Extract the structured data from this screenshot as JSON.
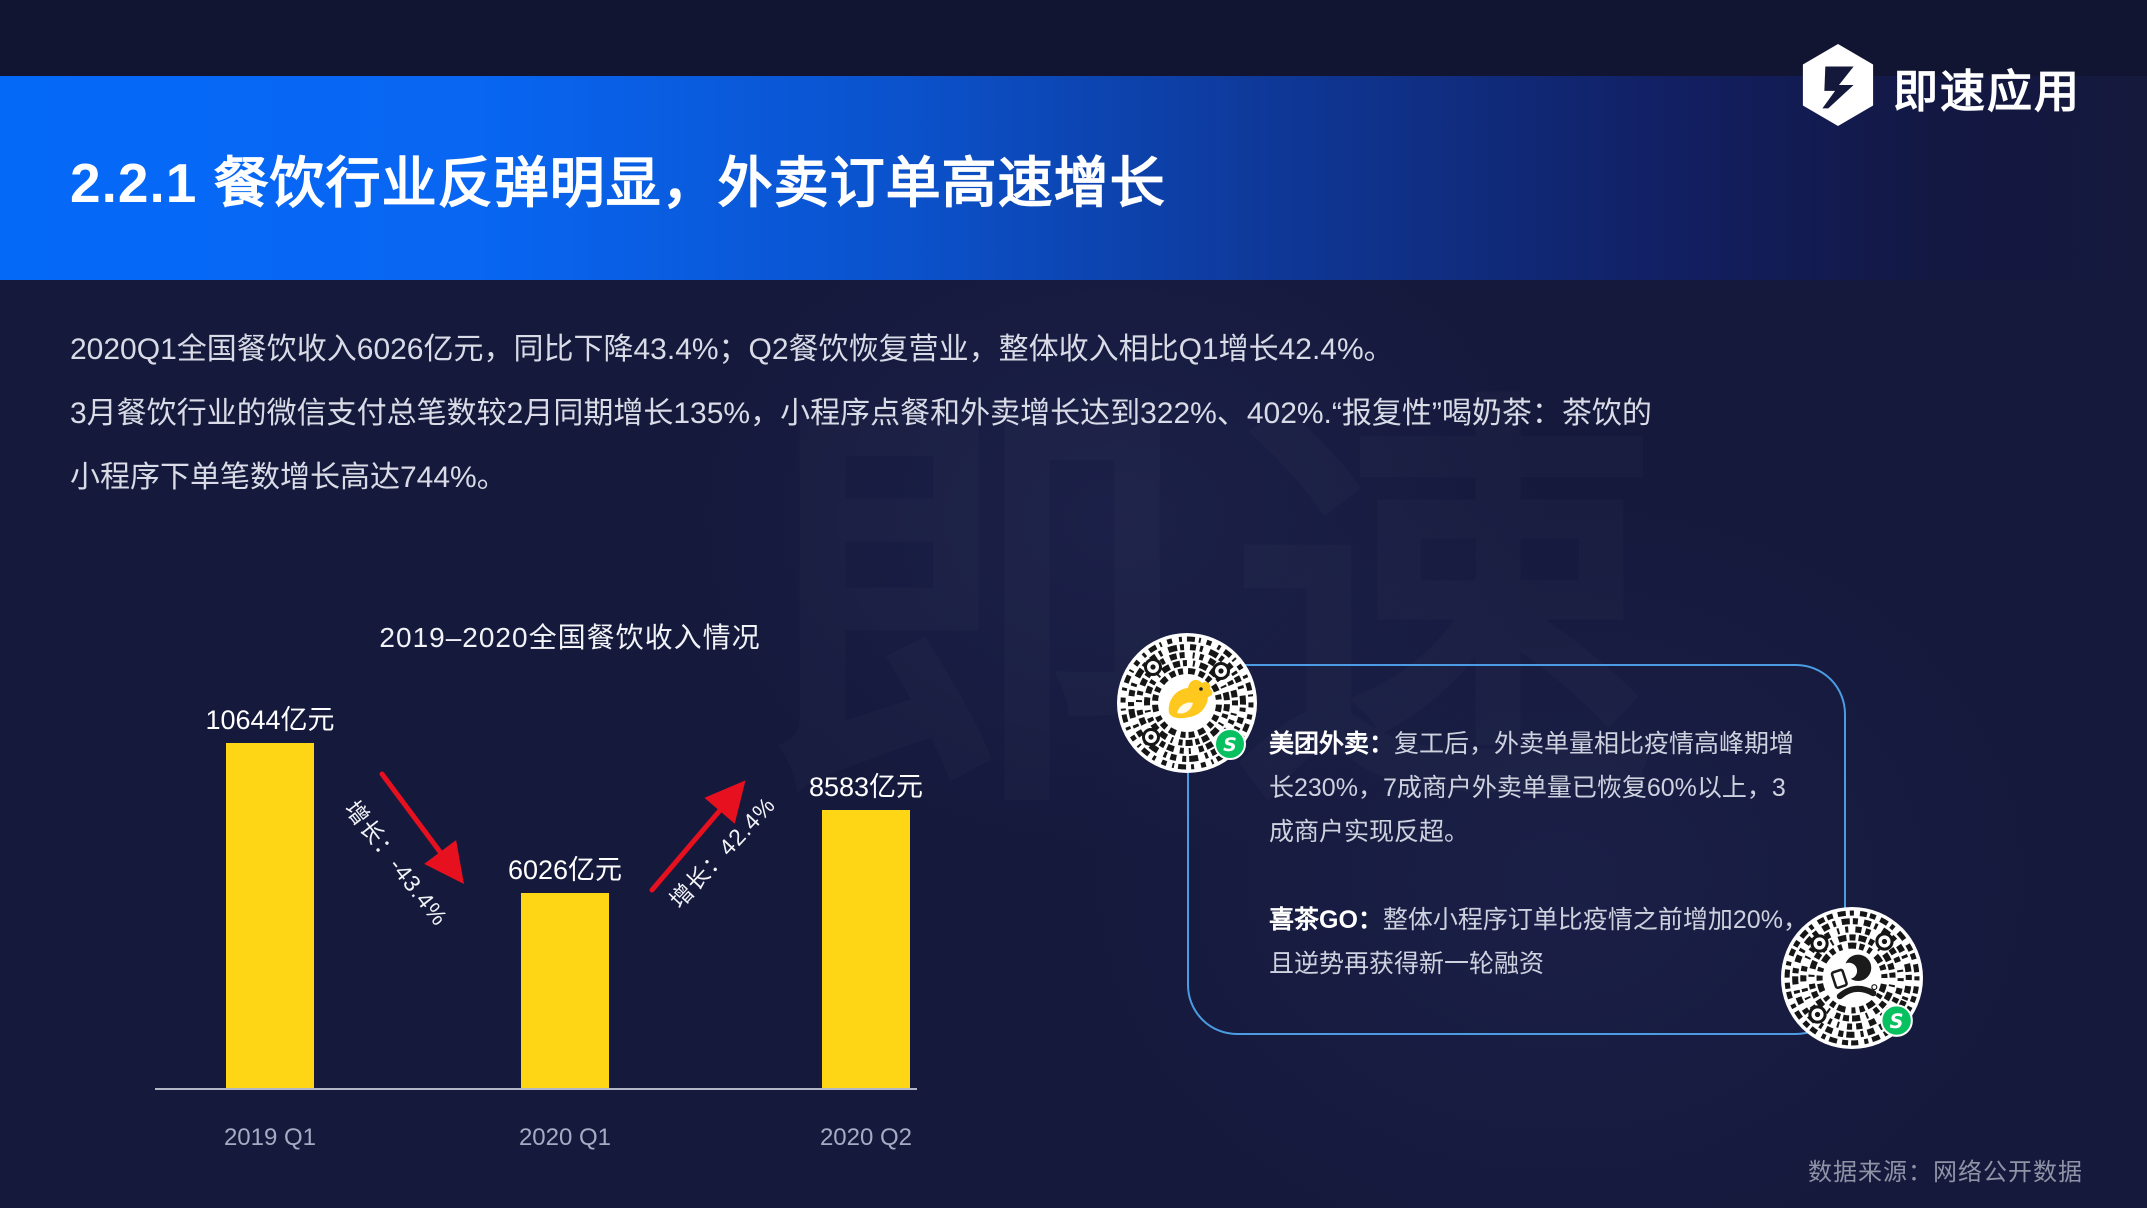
{
  "logo": {
    "text": "即速应用"
  },
  "header": {
    "title": "2.2.1 餐饮行业反弹明显，外卖订单高速增长"
  },
  "intro": {
    "lines": [
      "2020Q1全国餐饮收入6026亿元，同比下降43.4%；Q2餐饮恢复营业，整体收入相比Q1增长42.4%。",
      "3月餐饮行业的微信支付总笔数较2月同期增长135%，小程序点餐和外卖增长达到322%、402%.“报复性”喝奶茶：茶饮的",
      "小程序下单笔数增长高达744%。"
    ]
  },
  "chart_data": {
    "type": "bar",
    "title": "2019–2020全国餐饮收入情况",
    "categories": [
      "2019 Q1",
      "2020 Q1",
      "2020 Q2"
    ],
    "values": [
      10644,
      6026,
      8583
    ],
    "unit": "亿元",
    "value_labels": [
      "10644亿元",
      "6026亿元",
      "8583亿元"
    ],
    "ylim": [
      0,
      10644
    ],
    "grid": false,
    "legend": "none",
    "bar_color": "#FFD615",
    "annotations": [
      {
        "text": "增长：-43.4%",
        "between": [
          "2019 Q1",
          "2020 Q1"
        ],
        "direction": "down"
      },
      {
        "text": "增长：42.4%",
        "between": [
          "2020 Q1",
          "2020 Q2"
        ],
        "direction": "up"
      }
    ]
  },
  "panel": {
    "items": [
      {
        "label": "美团外卖：",
        "text": "复工后，外卖单量相比疫情高峰期增长230%，7成商户外卖单量已恢复60%以上，3成商户实现反超。",
        "qr": "meituan-mini-program-qr"
      },
      {
        "label": "喜茶GO：",
        "text": "整体小程序订单比疫情之前增加20%，且逆势再获得新一轮融资",
        "qr": "heytea-mini-program-qr"
      }
    ]
  },
  "footer": {
    "source": "数据来源：网络公开数据"
  },
  "colors": {
    "background": "#15193C",
    "banner_blue": "#0569F8",
    "bar_yellow": "#FFD615",
    "arrow_red": "#E6101F",
    "panel_border": "#4B9CE2",
    "badge_green": "#07C160"
  }
}
